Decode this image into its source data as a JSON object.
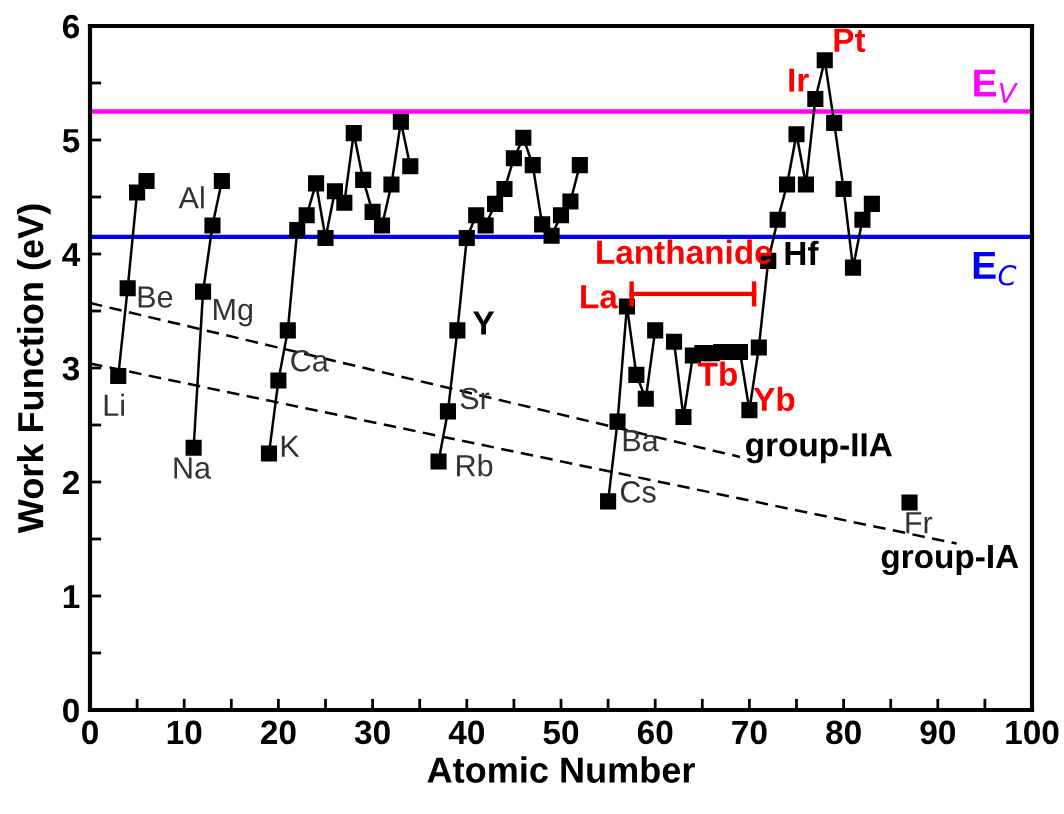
{
  "chart_data": {
    "type": "line",
    "xlabel": "Atomic Number",
    "ylabel": "Work Function (eV)",
    "xlim": [
      0,
      100
    ],
    "xticks": [
      0,
      {
        "value": 5,
        "label": null
      },
      10,
      {
        "value": 15,
        "label": null
      },
      20,
      {
        "value": 25,
        "label": null
      },
      30,
      {
        "value": 35,
        "label": null
      },
      40,
      {
        "value": 45,
        "label": null
      },
      50,
      {
        "value": 55,
        "label": null
      },
      60,
      {
        "value": 65,
        "label": null
      },
      70,
      {
        "value": 75,
        "label": null
      },
      80,
      {
        "value": 85,
        "label": null
      },
      90,
      {
        "value": 95,
        "label": null
      },
      100
    ],
    "ylim": [
      0,
      6
    ],
    "yticks": [
      0,
      {
        "value": 0.5,
        "label": null
      },
      1,
      {
        "value": 1.5,
        "label": null
      },
      2,
      {
        "value": 2.5,
        "label": null
      },
      3,
      {
        "value": 3.5,
        "label": null
      },
      4,
      {
        "value": 4.5,
        "label": null
      },
      5,
      {
        "value": 5.5,
        "label": null
      },
      6
    ],
    "grid": false,
    "legend": false,
    "marker": "square",
    "line_style": "solid",
    "series": [
      {
        "color": "#000000",
        "x": [
          3,
          4,
          5,
          6,
          8,
          11,
          12,
          13,
          14,
          16,
          19,
          20,
          21,
          22,
          23,
          24,
          25,
          26,
          27,
          28,
          29,
          30,
          31,
          32,
          33,
          34,
          36,
          37,
          38,
          39,
          40,
          41,
          42,
          43,
          44,
          45,
          46,
          47,
          48,
          49,
          50,
          51,
          52,
          54,
          55,
          56,
          57,
          58,
          59,
          60,
          61,
          62,
          63,
          64,
          65,
          66,
          67,
          68,
          69,
          70,
          71,
          72,
          73,
          74,
          75,
          76,
          77,
          78,
          79,
          80,
          81,
          82,
          83,
          85,
          87
        ],
        "values": [
          2.93,
          3.7,
          4.54,
          4.64,
          null,
          2.3,
          3.67,
          4.25,
          4.64,
          null,
          2.25,
          2.89,
          3.33,
          4.21,
          4.34,
          4.62,
          4.14,
          4.55,
          4.45,
          5.06,
          4.65,
          4.37,
          4.25,
          4.61,
          5.16,
          4.77,
          null,
          2.18,
          2.62,
          3.33,
          4.14,
          4.34,
          4.25,
          4.44,
          4.57,
          4.84,
          5.02,
          4.78,
          4.26,
          4.16,
          4.34,
          4.46,
          4.78,
          null,
          1.83,
          2.53,
          3.54,
          2.94,
          2.73,
          3.33,
          null,
          3.23,
          2.57,
          3.11,
          3.13,
          3.13,
          3.14,
          3.14,
          3.14,
          2.63,
          3.18,
          3.94,
          4.3,
          4.61,
          5.05,
          4.61,
          5.36,
          5.7,
          5.15,
          4.57,
          3.88,
          4.3,
          4.44,
          null,
          1.82
        ]
      },
      {
        "type": "line",
        "color": "#000000",
        "line_style": "dashed",
        "marker": "none",
        "x": [
          0,
          69
        ],
        "values": [
          3.57,
          2.22
        ]
      },
      {
        "type": "line",
        "color": "#000000",
        "line_style": "dashed",
        "marker": "none",
        "x": [
          0,
          92
        ],
        "values": [
          3.04,
          1.46
        ]
      },
      {
        "type": "line",
        "color": "#ff0000",
        "marker": "none",
        "line_style": "solid",
        "x": [
          57.5,
          70.5
        ],
        "values": [
          3.65,
          3.65
        ]
      }
    ],
    "ref_lines": [
      {
        "axis": "y",
        "value": 5.25,
        "label": "E$_{V}$",
        "color": "#ff00ff"
      },
      {
        "axis": "y",
        "value": 4.15,
        "label": "E$_{C}$",
        "color": "#0000ff"
      }
    ],
    "annotations": [
      {
        "text": "Li",
        "x": 3,
        "y": 2.93
      },
      {
        "text": "Be",
        "x": 4,
        "y": 3.7
      },
      {
        "text": "Na",
        "x": 11,
        "y": 2.3
      },
      {
        "text": "Al",
        "x": 13,
        "y": 4.25
      },
      {
        "text": "Mg",
        "x": 12,
        "y": 3.67
      },
      {
        "text": "Ca",
        "x": 20,
        "y": 2.89
      },
      {
        "text": "K",
        "x": 19,
        "y": 2.25
      },
      {
        "text": "Y",
        "x": 39,
        "y": 3.33
      },
      {
        "text": "Sr",
        "x": 38,
        "y": 2.62
      },
      {
        "text": "Rb",
        "x": 37,
        "y": 2.18
      },
      {
        "text": "Ba",
        "x": 56,
        "y": 2.53
      },
      {
        "text": "Cs",
        "x": 55,
        "y": 1.83
      },
      {
        "text": "La",
        "x": 57,
        "y": 3.54
      },
      {
        "text": "Lanthanide",
        "x": 64,
        "y": 3.65
      },
      {
        "text": "Tb",
        "x": 65,
        "y": 3.13
      },
      {
        "text": "Yb",
        "x": 70,
        "y": 2.63
      },
      {
        "text": "Hf",
        "x": 72,
        "y": 3.94
      },
      {
        "text": "Ir",
        "x": 77,
        "y": 5.36
      },
      {
        "text": "Pt",
        "x": 78,
        "y": 5.7
      },
      {
        "text": "group-IIA",
        "x": 69,
        "y": 2.22
      },
      {
        "text": "Fr",
        "x": 87,
        "y": 1.82
      },
      {
        "text": "group-IA",
        "x": 84,
        "y": 1.59
      }
    ]
  }
}
